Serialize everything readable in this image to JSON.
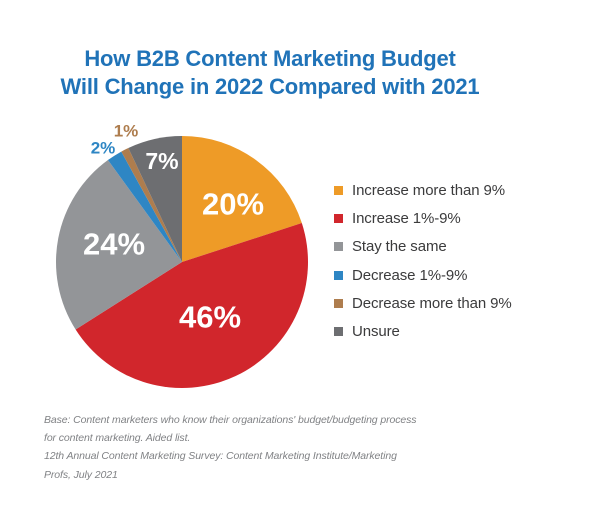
{
  "title": {
    "lines": [
      "How B2B Content Marketing Budget",
      "Will Change in 2022 Compared with 2021"
    ],
    "color": "#2073B8"
  },
  "chart_data": {
    "type": "pie",
    "title": "How B2B Content Marketing Budget Will Change in 2022 Compared with 2021",
    "start_angle": "12 o'clock, clockwise",
    "legend_position": "right",
    "value_label_format": "percent",
    "slices": [
      {
        "label": "Increase more than 9%",
        "value": 20,
        "value_label": "20%",
        "color": "#EE9B27"
      },
      {
        "label": "Increase 1%-9%",
        "value": 46,
        "value_label": "46%",
        "color": "#D1262C"
      },
      {
        "label": "Stay the same",
        "value": 24,
        "value_label": "24%",
        "color": "#939598"
      },
      {
        "label": "Decrease 1%-9%",
        "value": 2,
        "value_label": "2%",
        "color": "#2E86C4"
      },
      {
        "label": "Decrease more than 9%",
        "value": 1,
        "value_label": "1%",
        "color": "#AE7D4E"
      },
      {
        "label": "Unsure",
        "value": 7,
        "value_label": "7%",
        "color": "#6D6E71"
      }
    ]
  },
  "footnote": {
    "color": "#808285",
    "lines": [
      "Base: Content marketers who know their organizations' budget/budgeting process",
      "for content marketing. Aided list.",
      "12th Annual Content Marketing Survey: Content Marketing Institute/Marketing",
      "Profs, July 2021"
    ]
  }
}
